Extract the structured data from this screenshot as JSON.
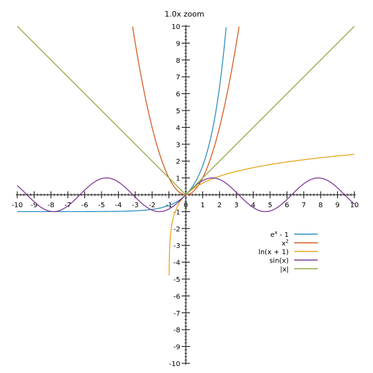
{
  "zoom": {
    "label": "1.0x zoom"
  },
  "chart_data": {
    "type": "line",
    "title": "",
    "xlabel": "",
    "ylabel": "",
    "xlim": [
      -10,
      10
    ],
    "ylim": [
      -10,
      10
    ],
    "x_ticks": [
      "-10",
      "-9",
      "-8",
      "-7",
      "-6",
      "-5",
      "-4",
      "-3",
      "-2",
      "-1",
      "0",
      "1",
      "2",
      "3",
      "4",
      "5",
      "6",
      "7",
      "8",
      "9",
      "10"
    ],
    "y_ticks_pos": [
      "1",
      "2",
      "3",
      "4",
      "5",
      "6",
      "7",
      "8",
      "9",
      "10"
    ],
    "y_ticks_neg": [
      "-1",
      "-2",
      "-3",
      "-4",
      "-5",
      "-6",
      "-7",
      "-8",
      "-9",
      "-10"
    ],
    "grid": false,
    "legend_position": "right",
    "series": [
      {
        "name": "e",
        "name_sup": "x",
        "name_tail": " - 1",
        "fn": "exp_minus_1",
        "color": "#2b8cbe"
      },
      {
        "name": "x",
        "name_sup": "2",
        "name_tail": "",
        "fn": "square",
        "color": "#d4571c"
      },
      {
        "name": "ln(x + 1)",
        "name_sup": "",
        "name_tail": "",
        "fn": "log1p",
        "color": "#e8a317"
      },
      {
        "name": "sin(x)",
        "name_sup": "",
        "name_tail": "",
        "fn": "sin",
        "color": "#7b3294"
      },
      {
        "name": "|x|",
        "name_sup": "",
        "name_tail": "",
        "fn": "abs",
        "color": "#8aa83c"
      }
    ]
  }
}
